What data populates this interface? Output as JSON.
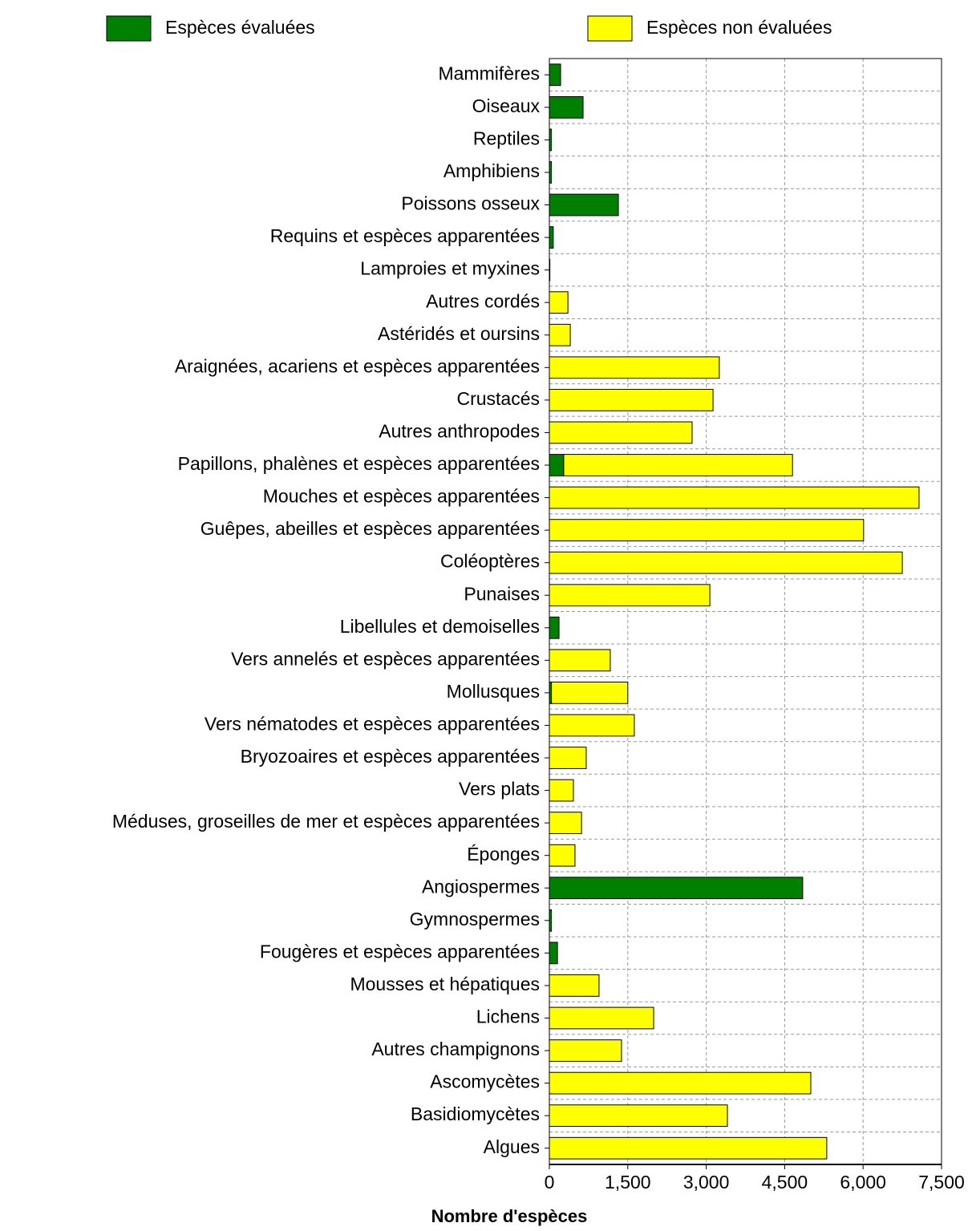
{
  "chart_data": {
    "type": "stacked_barh",
    "x_label": "Nombre d'espèces",
    "categories": [
      "Mammifères",
      "Oiseaux",
      "Reptiles",
      "Amphibiens",
      "Poissons osseux",
      "Requins et espèces apparentées",
      "Lamproies et myxines",
      "Autres cordés",
      "Astéridés et oursins",
      "Araignées, acariens et espèces apparentées",
      "Crustacés",
      "Autres anthropodes",
      "Papillons, phalènes et espèces apparentées",
      "Mouches et espèces apparentées",
      "Guêpes, abeilles et espèces apparentées",
      "Coléoptères",
      "Punaises",
      "Libellules et demoiselles",
      "Vers annelés et espèces apparentées",
      "Mollusques",
      "Vers nématodes et espèces apparentées",
      "Bryozoaires et espèces apparentées",
      "Vers plats",
      "Méduses, groseilles de mer et espèces apparentées",
      "Éponges",
      "Angiospermes",
      "Gymnospermes",
      "Fougères et espèces apparentées",
      "Mousses et hépatiques",
      "Lichens",
      "Autres champignons",
      "Ascomycètes",
      "Basidiomycètes",
      "Algues"
    ],
    "series": [
      {
        "name": "Espèces évaluées",
        "color": "#008000",
        "values": [
          215,
          645,
          40,
          40,
          1320,
          75,
          10,
          0,
          0,
          0,
          0,
          0,
          275,
          0,
          0,
          0,
          0,
          185,
          0,
          40,
          0,
          0,
          0,
          0,
          0,
          4845,
          40,
          155,
          0,
          0,
          0,
          0,
          0,
          0
        ]
      },
      {
        "name": "Espèces non évaluées",
        "color": "#ffff00",
        "values": [
          0,
          0,
          0,
          0,
          0,
          0,
          0,
          355,
          400,
          3250,
          3130,
          2730,
          4375,
          7070,
          6010,
          6750,
          3070,
          0,
          1165,
          1460,
          1625,
          705,
          460,
          615,
          490,
          0,
          0,
          0,
          950,
          1995,
          1380,
          5000,
          3405,
          5305
        ]
      }
    ],
    "xlim": [
      0,
      7500
    ],
    "xticks": [
      0,
      {
        "value": 1500,
        "label": "1,500"
      },
      {
        "value": 3000,
        "label": "3,000"
      },
      {
        "value": 4500,
        "label": "4,500"
      },
      {
        "value": 6000,
        "label": "6,000"
      },
      {
        "value": 7500,
        "label": "7,500"
      }
    ],
    "grid": true
  }
}
